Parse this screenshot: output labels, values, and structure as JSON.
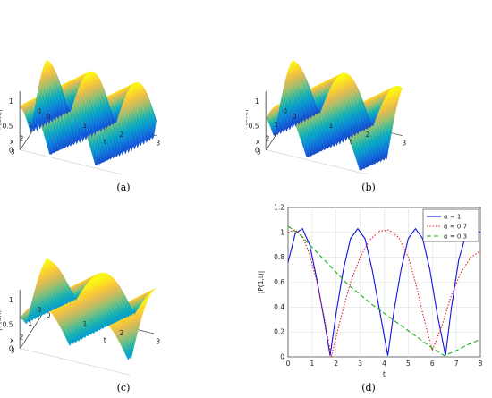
{
  "panels": [
    {
      "id": "a",
      "caption": "(a)",
      "type": "surface3d",
      "zlabel": "|P(1,t)|",
      "xlabel": "x",
      "ylabel": "t",
      "x_ticks": [
        "0",
        "1",
        "2",
        "3"
      ],
      "t_ticks": [
        "0",
        "1",
        "2",
        "3"
      ],
      "z_ticks": [
        "0",
        "0.5",
        "1"
      ],
      "alpha": 1
    },
    {
      "id": "b",
      "caption": "(b)",
      "type": "surface3d",
      "zlabel": "|P(1,t)|",
      "xlabel": "x",
      "ylabel": "t",
      "x_ticks": [
        "0",
        "1",
        "2",
        "3"
      ],
      "t_ticks": [
        "0",
        "1",
        "2",
        "3"
      ],
      "z_ticks": [
        "0",
        "0.5",
        "1"
      ],
      "alpha": 0.7
    },
    {
      "id": "c",
      "caption": "(c)",
      "type": "surface3d",
      "zlabel": "|P(1,t)|",
      "xlabel": "x",
      "ylabel": "t",
      "x_ticks": [
        "0",
        "1",
        "2",
        "3"
      ],
      "t_ticks": [
        "0",
        "1",
        "2",
        "3"
      ],
      "z_ticks": [
        "0",
        "0.5",
        "1"
      ],
      "alpha": 0.3
    }
  ],
  "chart_data": {
    "type": "line",
    "caption": "(d)",
    "xlabel": "t",
    "ylabel": "|P(1,t)|",
    "xlim": [
      0,
      8
    ],
    "ylim": [
      0,
      1.2
    ],
    "x_ticks": [
      "0",
      "1",
      "2",
      "3",
      "4",
      "5",
      "6",
      "7",
      "8"
    ],
    "y_ticks": [
      "0",
      "0.2",
      "0.4",
      "0.6",
      "0.8",
      "1",
      "1.2"
    ],
    "grid": true,
    "legend_position": "top-right",
    "series": [
      {
        "name": "α = 1",
        "color": "#1010e0",
        "dash": "solid",
        "x": [
          0,
          0.3,
          0.6,
          0.9,
          1.2,
          1.5,
          1.75,
          2.0,
          2.3,
          2.6,
          2.9,
          3.2,
          3.5,
          3.8,
          4.15,
          4.4,
          4.7,
          5.0,
          5.3,
          5.6,
          5.9,
          6.2,
          6.55,
          6.8,
          7.1,
          7.4,
          7.7,
          8.0
        ],
        "values": [
          0.76,
          0.99,
          1.03,
          0.9,
          0.62,
          0.3,
          0.01,
          0.35,
          0.7,
          0.95,
          1.03,
          0.95,
          0.7,
          0.38,
          0.01,
          0.36,
          0.7,
          0.95,
          1.03,
          0.95,
          0.7,
          0.35,
          0.01,
          0.4,
          0.78,
          0.98,
          1.03,
          1.0
        ]
      },
      {
        "name": "α = 0.7",
        "color": "#e02020",
        "dash": "dotted",
        "x": [
          0,
          0.3,
          0.6,
          0.9,
          1.2,
          1.5,
          1.8,
          2.2,
          2.6,
          3.0,
          3.4,
          3.8,
          4.2,
          4.6,
          5.0,
          5.3,
          5.6,
          6.0,
          6.4,
          6.8,
          7.2,
          7.6,
          8.0
        ],
        "values": [
          1.0,
          1.02,
          0.97,
          0.82,
          0.6,
          0.32,
          0.0,
          0.32,
          0.6,
          0.8,
          0.94,
          1.01,
          1.02,
          0.96,
          0.8,
          0.6,
          0.35,
          0.05,
          0.25,
          0.5,
          0.68,
          0.8,
          0.85
        ]
      },
      {
        "name": "α = 0.3",
        "color": "#10b010",
        "dash": "dashed",
        "x": [
          0,
          0.5,
          1.0,
          1.5,
          2.0,
          2.5,
          3.0,
          3.5,
          4.0,
          4.5,
          5.0,
          5.5,
          6.0,
          6.5,
          7.0,
          7.5,
          8.0
        ],
        "values": [
          1.05,
          0.98,
          0.88,
          0.78,
          0.68,
          0.58,
          0.5,
          0.42,
          0.35,
          0.28,
          0.21,
          0.14,
          0.07,
          0.01,
          0.05,
          0.1,
          0.14
        ]
      }
    ]
  }
}
